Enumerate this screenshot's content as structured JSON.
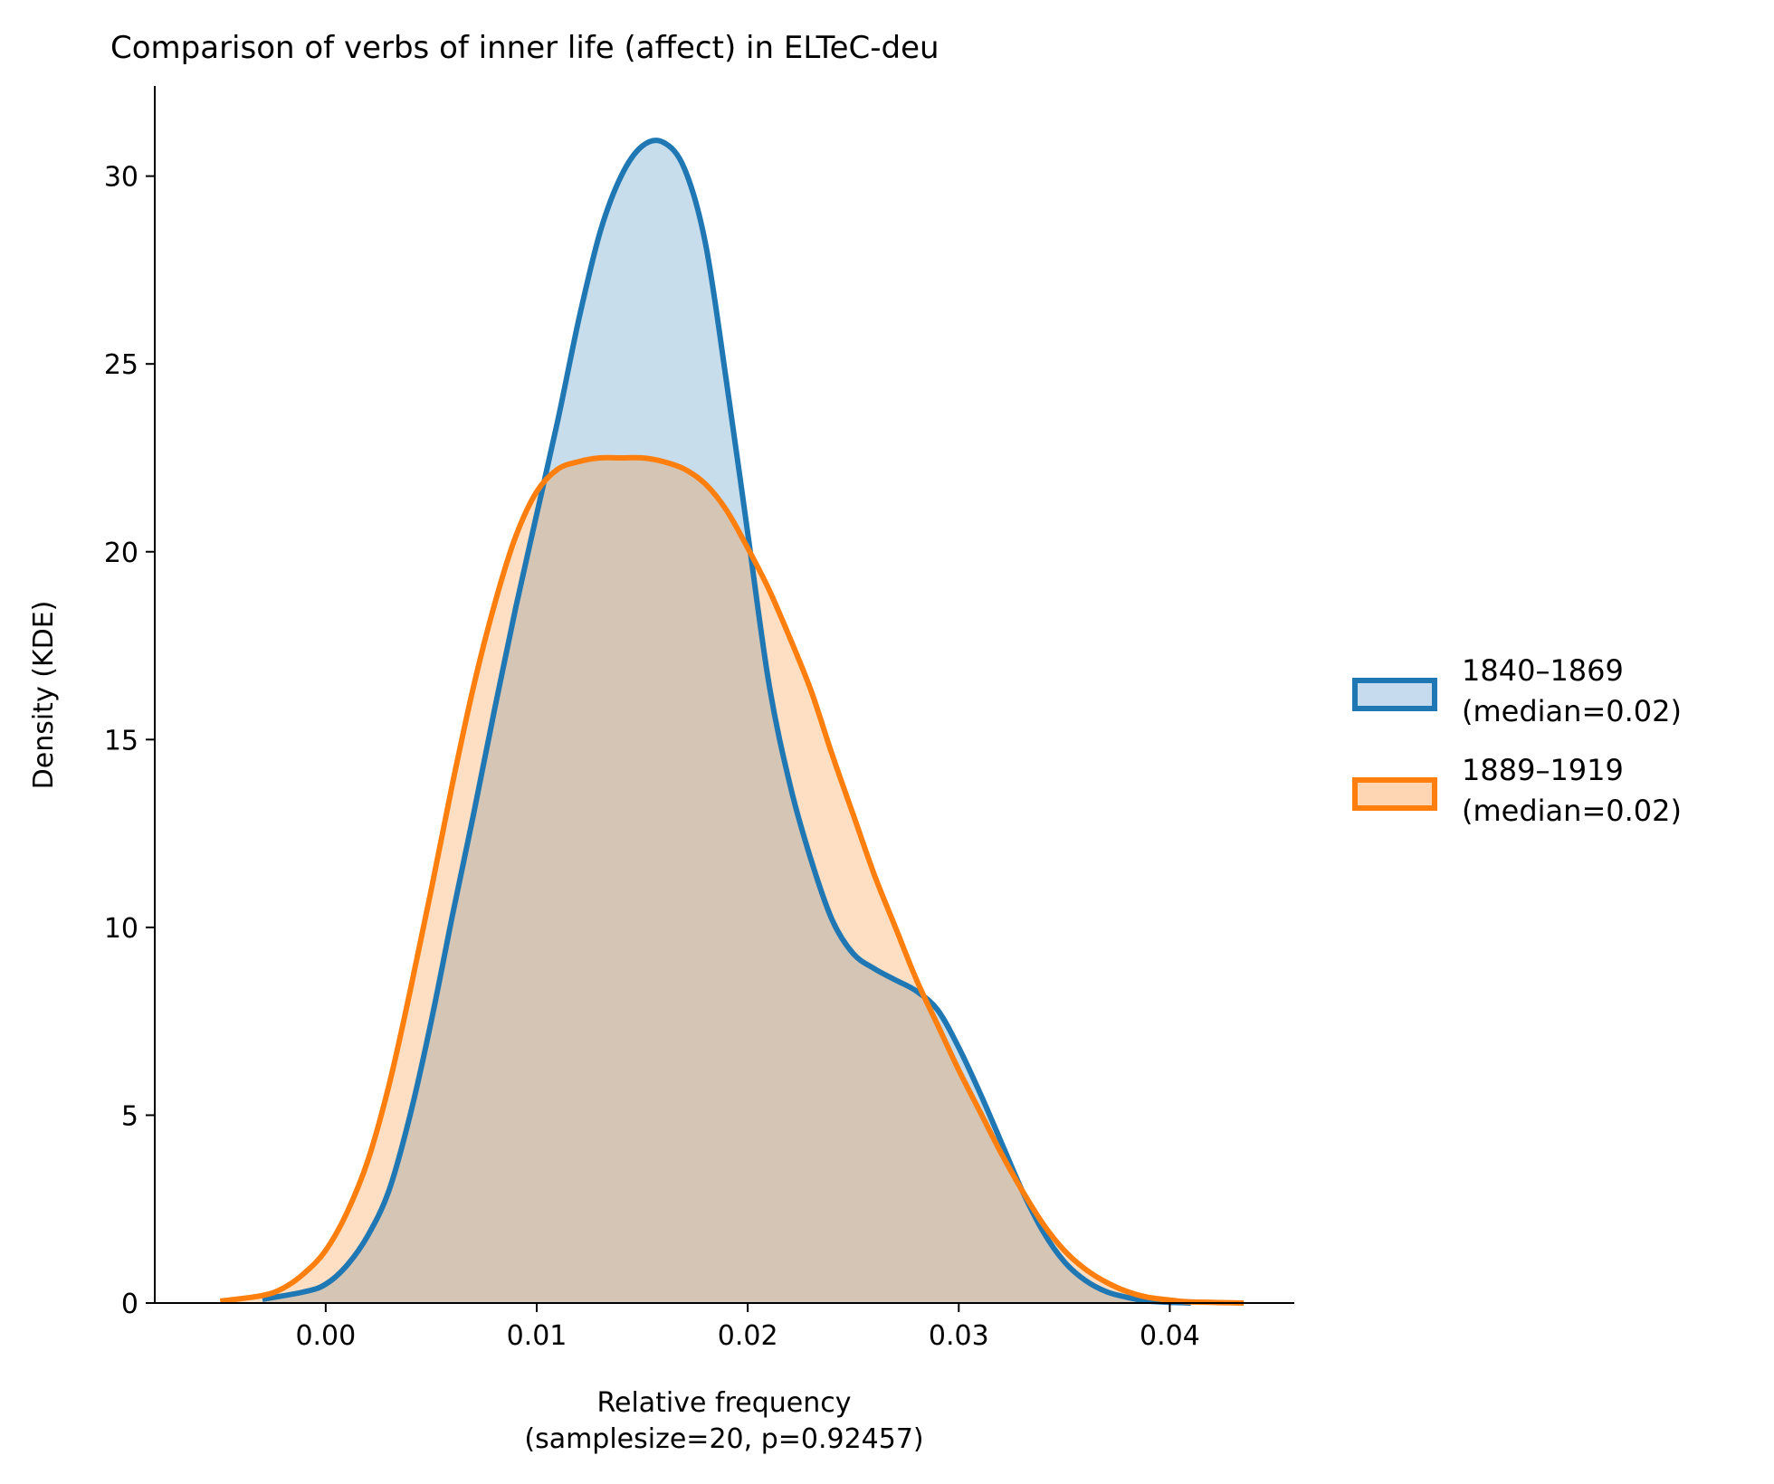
{
  "chart_data": {
    "type": "area",
    "title": "Comparison of verbs of inner life (affect) in ELTeC-deu",
    "xlabel": [
      "Relative frequency",
      "(samplesize=20, p=0.92457)"
    ],
    "ylabel": "Density (KDE)",
    "xlim": [
      -0.0081,
      0.0459
    ],
    "ylim": [
      0,
      32.4
    ],
    "x_ticks": [
      0.0,
      0.01,
      0.02,
      0.03,
      0.04
    ],
    "x_tick_labels": [
      "0.00",
      "0.01",
      "0.02",
      "0.03",
      "0.04"
    ],
    "y_ticks": [
      0,
      5,
      10,
      15,
      20,
      25,
      30
    ],
    "y_tick_labels": [
      "0",
      "5",
      "10",
      "15",
      "20",
      "25",
      "30"
    ],
    "grid": false,
    "legend_position": "center-right",
    "series": [
      {
        "name": "1840–1869\n(median=0.02)",
        "legend_lines": [
          "1840–1869",
          "(median=0.02)"
        ],
        "color": "#1f77b4",
        "fill": "#c6dbed",
        "x": [
          -0.003,
          -0.001,
          0.0,
          0.001,
          0.002,
          0.003,
          0.004,
          0.005,
          0.006,
          0.007,
          0.008,
          0.009,
          0.01,
          0.011,
          0.012,
          0.013,
          0.014,
          0.015,
          0.016,
          0.017,
          0.018,
          0.019,
          0.02,
          0.021,
          0.022,
          0.023,
          0.024,
          0.025,
          0.026,
          0.027,
          0.028,
          0.029,
          0.03,
          0.031,
          0.032,
          0.033,
          0.034,
          0.035,
          0.036,
          0.037,
          0.038,
          0.039,
          0.041
        ],
        "y": [
          0.1,
          0.3,
          0.5,
          1.0,
          1.8,
          3.0,
          5.0,
          7.5,
          10.3,
          13.0,
          15.8,
          18.5,
          21.0,
          23.5,
          26.2,
          28.5,
          30.0,
          30.8,
          30.9,
          30.2,
          28.2,
          24.5,
          20.5,
          16.5,
          13.8,
          11.8,
          10.2,
          9.3,
          8.9,
          8.6,
          8.3,
          7.8,
          6.8,
          5.6,
          4.3,
          3.0,
          1.9,
          1.1,
          0.6,
          0.3,
          0.15,
          0.05,
          0.0
        ]
      },
      {
        "name": "1889–1919\n(median=0.02)",
        "legend_lines": [
          "1889–1919",
          "(median=0.02)"
        ],
        "color": "#ff7f0e",
        "fill": "#fed6b4",
        "x": [
          -0.005,
          -0.003,
          -0.002,
          -0.001,
          0.0,
          0.001,
          0.002,
          0.003,
          0.004,
          0.005,
          0.006,
          0.007,
          0.008,
          0.009,
          0.01,
          0.011,
          0.012,
          0.013,
          0.014,
          0.015,
          0.016,
          0.017,
          0.018,
          0.019,
          0.02,
          0.021,
          0.022,
          0.023,
          0.024,
          0.025,
          0.026,
          0.027,
          0.028,
          0.029,
          0.03,
          0.031,
          0.032,
          0.033,
          0.034,
          0.035,
          0.036,
          0.037,
          0.038,
          0.039,
          0.04,
          0.041,
          0.0435
        ],
        "y": [
          0.05,
          0.2,
          0.4,
          0.8,
          1.4,
          2.4,
          3.8,
          5.8,
          8.3,
          11.0,
          13.8,
          16.4,
          18.6,
          20.4,
          21.6,
          22.2,
          22.4,
          22.5,
          22.5,
          22.5,
          22.4,
          22.2,
          21.8,
          21.1,
          20.1,
          19.0,
          17.7,
          16.3,
          14.6,
          13.0,
          11.4,
          10.0,
          8.6,
          7.4,
          6.2,
          5.1,
          4.0,
          3.0,
          2.1,
          1.4,
          0.9,
          0.55,
          0.3,
          0.15,
          0.08,
          0.03,
          0.0
        ]
      }
    ]
  }
}
